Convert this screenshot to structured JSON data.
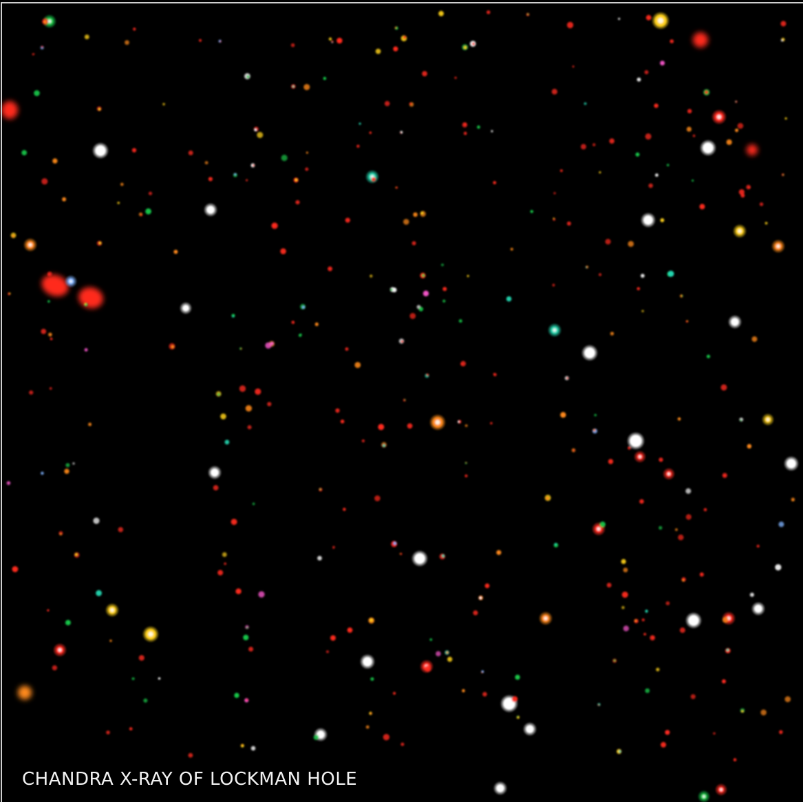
{
  "image": {
    "caption": "CHANDRA X-RAY OF LOCKMAN HOLE",
    "background_color": "#000000",
    "source_colors": [
      "#ff2a1f",
      "#ff8a1a",
      "#ffd21a",
      "#19c94a",
      "#24d6b0",
      "#ffffff",
      "#ff5ad2",
      "#7fb3ff"
    ]
  }
}
